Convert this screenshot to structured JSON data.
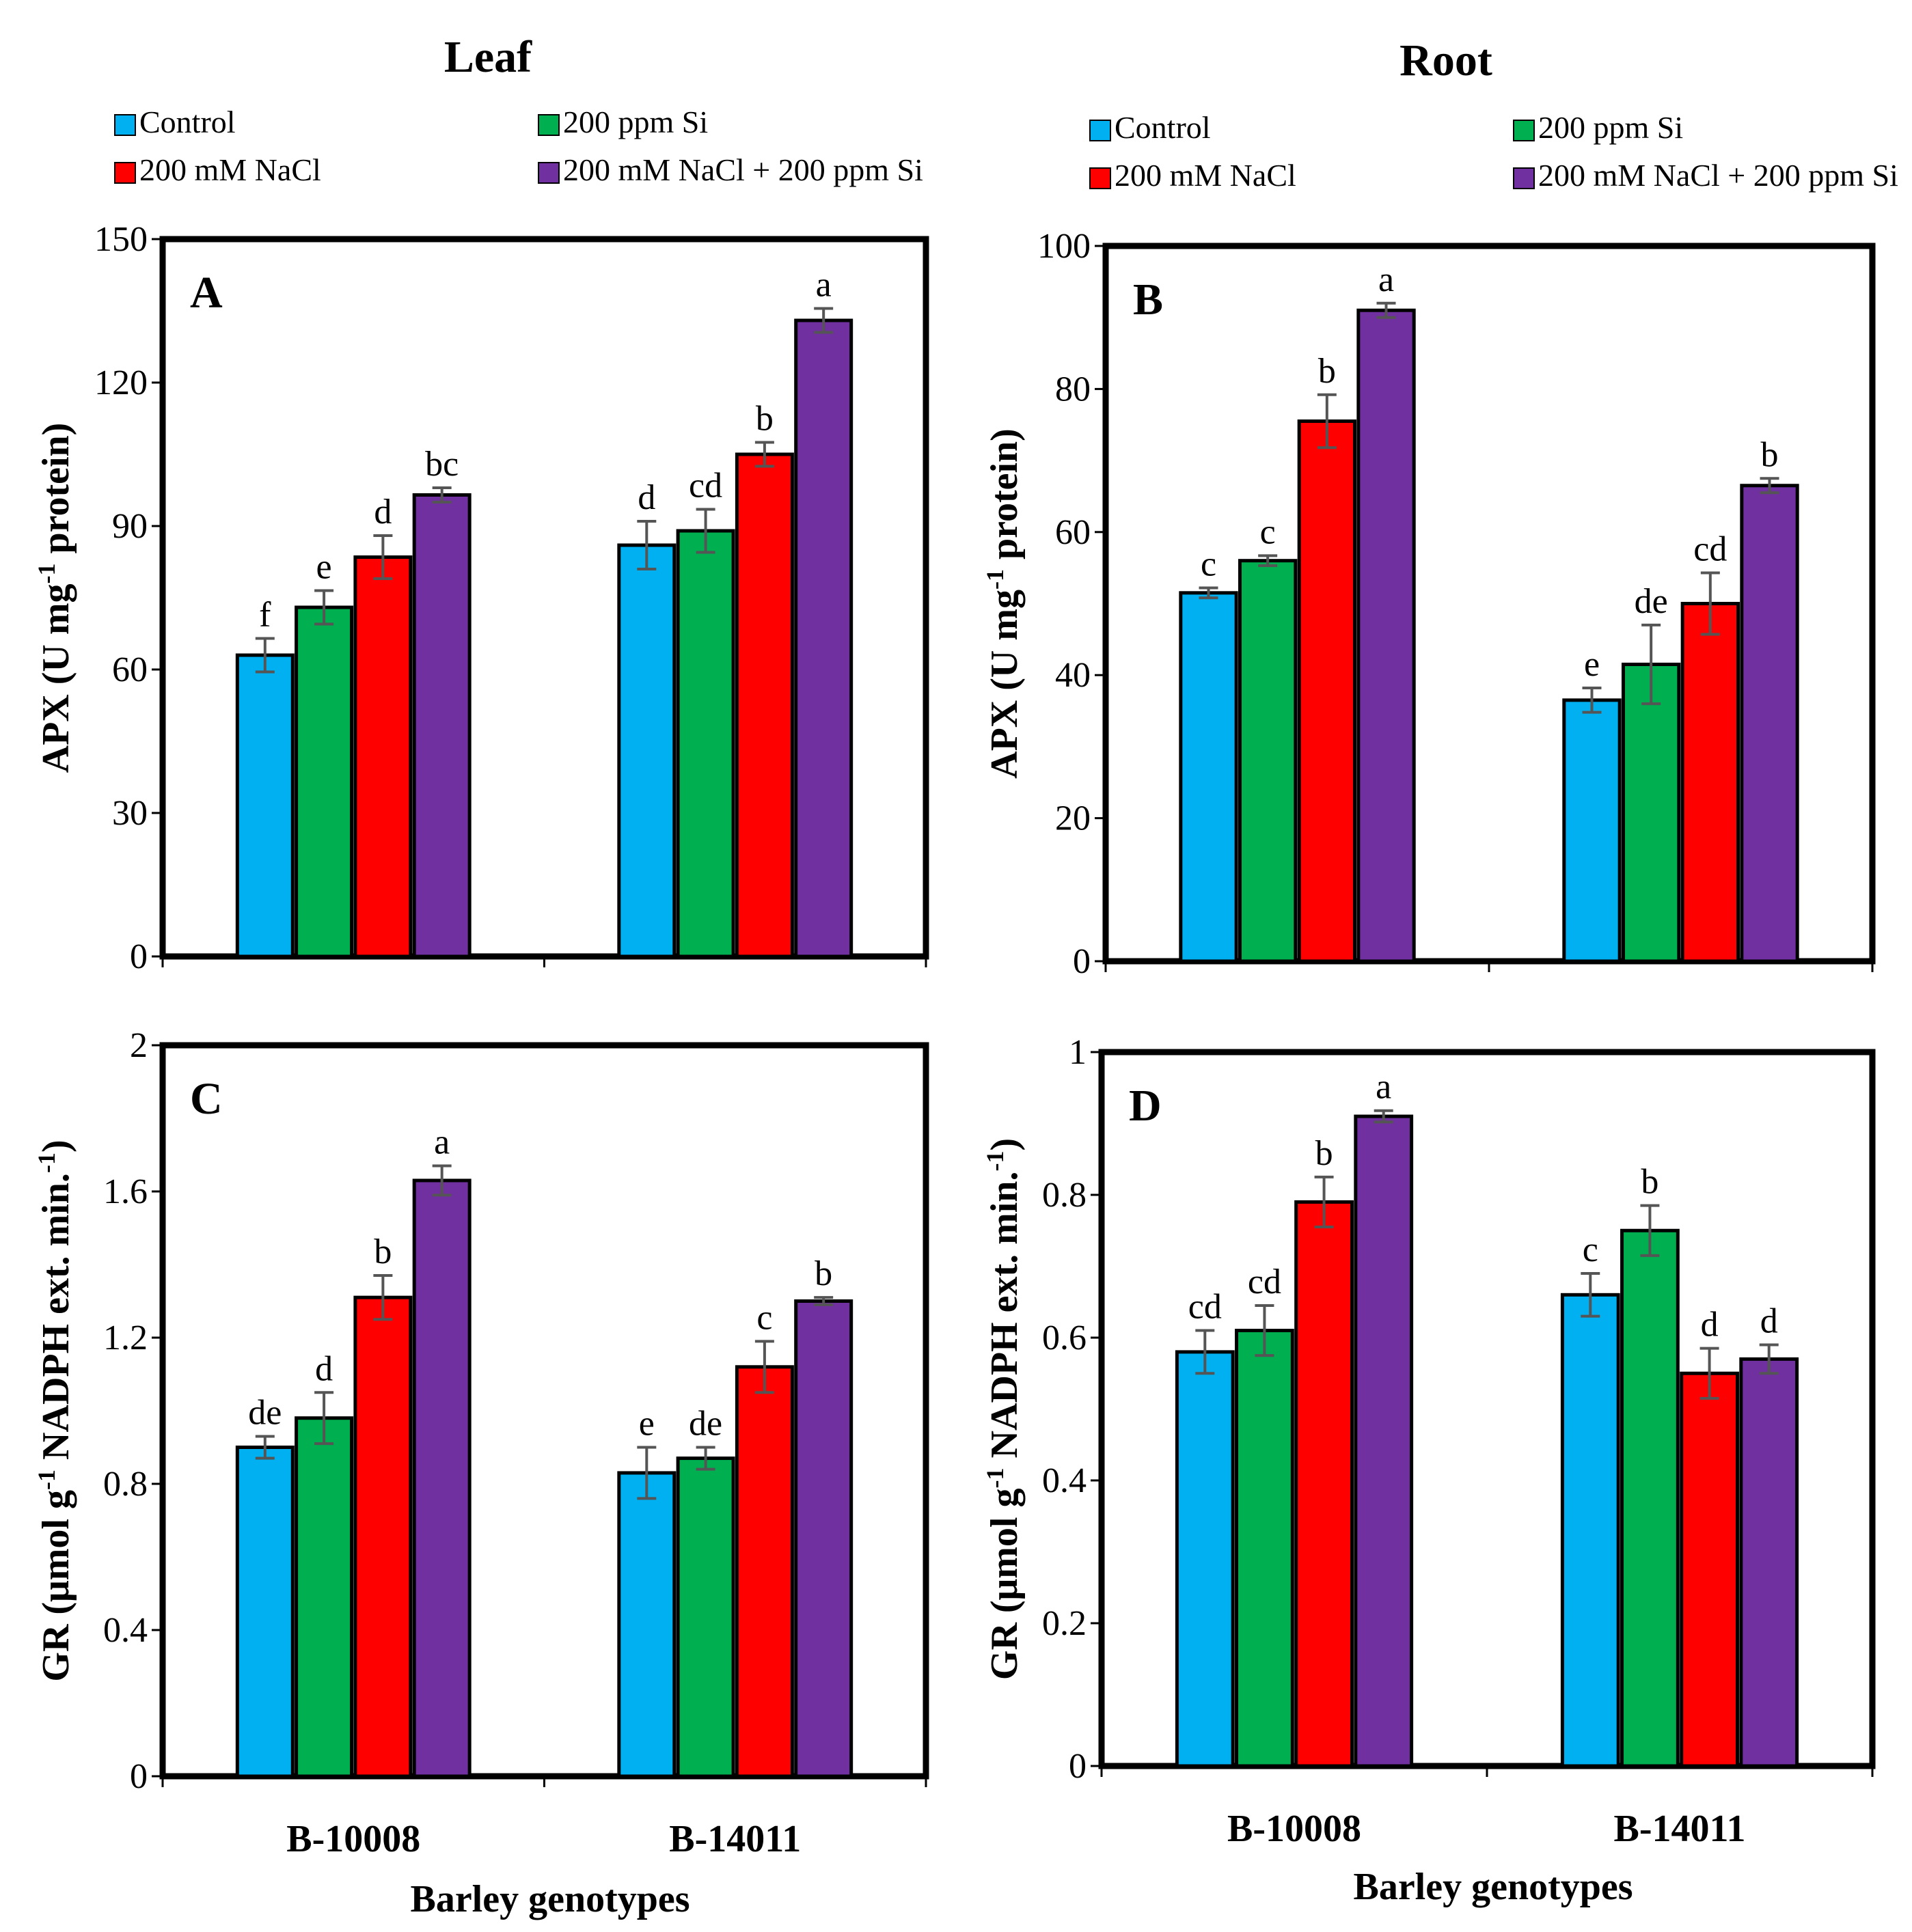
{
  "figure": {
    "headings": {
      "leaf": "Leaf",
      "root": "Root"
    },
    "x_axis_title": "Barley genotypes",
    "legend": [
      {
        "label": "Control",
        "color": "#00B0F0"
      },
      {
        "label": "200 ppm Si",
        "color": "#00B050"
      },
      {
        "label": "200 mM NaCl",
        "color": "#FF0000"
      },
      {
        "label": "200 mM NaCl + 200 ppm Si",
        "color": "#7030A0"
      }
    ]
  },
  "chart_data": [
    {
      "type": "bar",
      "panel": "A",
      "column": "Leaf",
      "ylabel": "APX (U mg-1 protein)",
      "ylabel_parts": [
        "APX (U mg",
        "-1",
        " protein)"
      ],
      "ylim": [
        0,
        150
      ],
      "yticks": [
        0,
        30,
        60,
        90,
        120,
        150
      ],
      "ytick_labels": [
        "0",
        "30",
        "60",
        "90",
        "120",
        "150"
      ],
      "categories": [
        "B-10008",
        "B-14011"
      ],
      "show_category_labels": false,
      "series": [
        {
          "name": "Control",
          "values": [
            63,
            86
          ],
          "errors": [
            3.5,
            5
          ],
          "letters": [
            "f",
            "d"
          ]
        },
        {
          "name": "200 ppm Si",
          "values": [
            73,
            89
          ],
          "errors": [
            3.5,
            4.5
          ],
          "letters": [
            "e",
            "cd"
          ]
        },
        {
          "name": "200 mM NaCl",
          "values": [
            83.5,
            105
          ],
          "errors": [
            4.5,
            2.5
          ],
          "letters": [
            "d",
            "b"
          ]
        },
        {
          "name": "200 mM NaCl + 200 ppm Si",
          "values": [
            96.5,
            133
          ],
          "errors": [
            1.5,
            2.5
          ],
          "letters": [
            "bc",
            "a"
          ]
        }
      ]
    },
    {
      "type": "bar",
      "panel": "B",
      "column": "Root",
      "ylabel": "APX (U mg-1 protein)",
      "ylabel_parts": [
        "APX (U mg",
        "-1",
        " protein)"
      ],
      "ylim": [
        0,
        100
      ],
      "yticks": [
        0,
        20,
        40,
        60,
        80,
        100
      ],
      "ytick_labels": [
        "0",
        "20",
        "40",
        "60",
        "80",
        "100"
      ],
      "categories": [
        "B-10008",
        "B-14011"
      ],
      "show_category_labels": false,
      "series": [
        {
          "name": "Control",
          "values": [
            51.5,
            36.5
          ],
          "errors": [
            0.7,
            1.7
          ],
          "letters": [
            "c",
            "e"
          ]
        },
        {
          "name": "200 ppm Si",
          "values": [
            56,
            41.5
          ],
          "errors": [
            0.7,
            5.5
          ],
          "letters": [
            "c",
            "de"
          ]
        },
        {
          "name": "200 mM NaCl",
          "values": [
            75.5,
            50
          ],
          "errors": [
            3.7,
            4.3
          ],
          "letters": [
            "b",
            "cd"
          ]
        },
        {
          "name": "200 mM NaCl + 200 ppm Si",
          "values": [
            91,
            66.5
          ],
          "errors": [
            1,
            1
          ],
          "letters": [
            "a",
            "b"
          ]
        }
      ]
    },
    {
      "type": "bar",
      "panel": "C",
      "column": "Leaf",
      "ylabel": "GR (μmol g-1 NADPH ext. min.-1)",
      "ylabel_parts": [
        "GR (μmol g",
        "-1",
        " NADPH ext. min.",
        "-1",
        ")"
      ],
      "ylim": [
        0,
        2
      ],
      "yticks": [
        0,
        0.4,
        0.8,
        1.2,
        1.6,
        2
      ],
      "ytick_labels": [
        "0",
        "0.4",
        "0.8",
        "1.2",
        "1.6",
        "2"
      ],
      "categories": [
        "B-10008",
        "B-14011"
      ],
      "show_category_labels": true,
      "series": [
        {
          "name": "Control",
          "values": [
            0.9,
            0.83
          ],
          "errors": [
            0.03,
            0.07
          ],
          "letters": [
            "de",
            "e"
          ]
        },
        {
          "name": "200 ppm Si",
          "values": [
            0.98,
            0.87
          ],
          "errors": [
            0.07,
            0.03
          ],
          "letters": [
            "d",
            "de"
          ]
        },
        {
          "name": "200 mM NaCl",
          "values": [
            1.31,
            1.12
          ],
          "errors": [
            0.06,
            0.07
          ],
          "letters": [
            "b",
            "c"
          ]
        },
        {
          "name": "200 mM NaCl + 200 ppm Si",
          "values": [
            1.63,
            1.3
          ],
          "errors": [
            0.04,
            0.01
          ],
          "letters": [
            "a",
            "b"
          ]
        }
      ]
    },
    {
      "type": "bar",
      "panel": "D",
      "column": "Root",
      "ylabel": "GR (μmol g-1 NADPH ext. min.-1)",
      "ylabel_parts": [
        "GR (μmol g",
        "-1",
        " NADPH ext. min.",
        "-1",
        ")"
      ],
      "ylim": [
        0,
        1
      ],
      "yticks": [
        0,
        0.2,
        0.4,
        0.6,
        0.8,
        1
      ],
      "ytick_labels": [
        "0",
        "0.2",
        "0.4",
        "0.6",
        "0.8",
        "1"
      ],
      "categories": [
        "B-10008",
        "B-14011"
      ],
      "show_category_labels": true,
      "series": [
        {
          "name": "Control",
          "values": [
            0.58,
            0.66
          ],
          "errors": [
            0.03,
            0.03
          ],
          "letters": [
            "cd",
            "c"
          ]
        },
        {
          "name": "200 ppm Si",
          "values": [
            0.61,
            0.75
          ],
          "errors": [
            0.035,
            0.035
          ],
          "letters": [
            "cd",
            "b"
          ]
        },
        {
          "name": "200 mM NaCl",
          "values": [
            0.79,
            0.55
          ],
          "errors": [
            0.035,
            0.035
          ],
          "letters": [
            "b",
            "d"
          ]
        },
        {
          "name": "200 mM NaCl + 200 ppm Si",
          "values": [
            0.91,
            0.57
          ],
          "errors": [
            0.008,
            0.02
          ],
          "letters": [
            "a",
            "d"
          ]
        }
      ]
    }
  ]
}
